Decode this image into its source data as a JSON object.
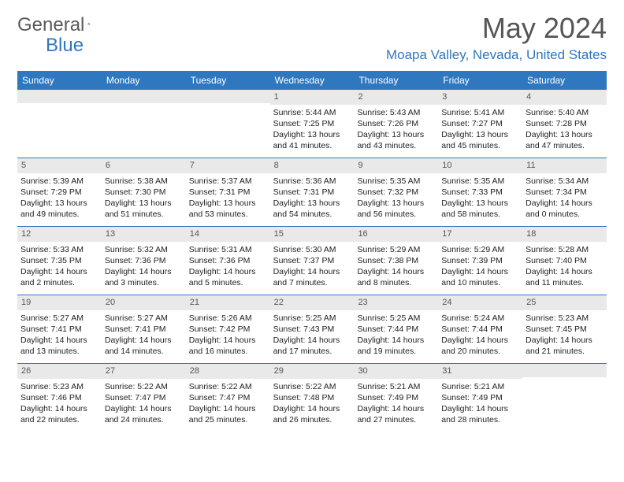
{
  "brand": {
    "g1": "General",
    "g2": "Blue"
  },
  "title": "May 2024",
  "location": "Moapa Valley, Nevada, United States",
  "colors": {
    "header_bg": "#2f78bf",
    "header_fg": "#ffffff",
    "num_bg": "#e9e9e9",
    "text": "#222222",
    "border": "#2f78bf"
  },
  "day_names": [
    "Sunday",
    "Monday",
    "Tuesday",
    "Wednesday",
    "Thursday",
    "Friday",
    "Saturday"
  ],
  "weeks": [
    [
      {
        "n": "",
        "sr": "",
        "ss": "",
        "dl": ""
      },
      {
        "n": "",
        "sr": "",
        "ss": "",
        "dl": ""
      },
      {
        "n": "",
        "sr": "",
        "ss": "",
        "dl": ""
      },
      {
        "n": "1",
        "sr": "Sunrise: 5:44 AM",
        "ss": "Sunset: 7:25 PM",
        "dl": "Daylight: 13 hours and 41 minutes."
      },
      {
        "n": "2",
        "sr": "Sunrise: 5:43 AM",
        "ss": "Sunset: 7:26 PM",
        "dl": "Daylight: 13 hours and 43 minutes."
      },
      {
        "n": "3",
        "sr": "Sunrise: 5:41 AM",
        "ss": "Sunset: 7:27 PM",
        "dl": "Daylight: 13 hours and 45 minutes."
      },
      {
        "n": "4",
        "sr": "Sunrise: 5:40 AM",
        "ss": "Sunset: 7:28 PM",
        "dl": "Daylight: 13 hours and 47 minutes."
      }
    ],
    [
      {
        "n": "5",
        "sr": "Sunrise: 5:39 AM",
        "ss": "Sunset: 7:29 PM",
        "dl": "Daylight: 13 hours and 49 minutes."
      },
      {
        "n": "6",
        "sr": "Sunrise: 5:38 AM",
        "ss": "Sunset: 7:30 PM",
        "dl": "Daylight: 13 hours and 51 minutes."
      },
      {
        "n": "7",
        "sr": "Sunrise: 5:37 AM",
        "ss": "Sunset: 7:31 PM",
        "dl": "Daylight: 13 hours and 53 minutes."
      },
      {
        "n": "8",
        "sr": "Sunrise: 5:36 AM",
        "ss": "Sunset: 7:31 PM",
        "dl": "Daylight: 13 hours and 54 minutes."
      },
      {
        "n": "9",
        "sr": "Sunrise: 5:35 AM",
        "ss": "Sunset: 7:32 PM",
        "dl": "Daylight: 13 hours and 56 minutes."
      },
      {
        "n": "10",
        "sr": "Sunrise: 5:35 AM",
        "ss": "Sunset: 7:33 PM",
        "dl": "Daylight: 13 hours and 58 minutes."
      },
      {
        "n": "11",
        "sr": "Sunrise: 5:34 AM",
        "ss": "Sunset: 7:34 PM",
        "dl": "Daylight: 14 hours and 0 minutes."
      }
    ],
    [
      {
        "n": "12",
        "sr": "Sunrise: 5:33 AM",
        "ss": "Sunset: 7:35 PM",
        "dl": "Daylight: 14 hours and 2 minutes."
      },
      {
        "n": "13",
        "sr": "Sunrise: 5:32 AM",
        "ss": "Sunset: 7:36 PM",
        "dl": "Daylight: 14 hours and 3 minutes."
      },
      {
        "n": "14",
        "sr": "Sunrise: 5:31 AM",
        "ss": "Sunset: 7:36 PM",
        "dl": "Daylight: 14 hours and 5 minutes."
      },
      {
        "n": "15",
        "sr": "Sunrise: 5:30 AM",
        "ss": "Sunset: 7:37 PM",
        "dl": "Daylight: 14 hours and 7 minutes."
      },
      {
        "n": "16",
        "sr": "Sunrise: 5:29 AM",
        "ss": "Sunset: 7:38 PM",
        "dl": "Daylight: 14 hours and 8 minutes."
      },
      {
        "n": "17",
        "sr": "Sunrise: 5:29 AM",
        "ss": "Sunset: 7:39 PM",
        "dl": "Daylight: 14 hours and 10 minutes."
      },
      {
        "n": "18",
        "sr": "Sunrise: 5:28 AM",
        "ss": "Sunset: 7:40 PM",
        "dl": "Daylight: 14 hours and 11 minutes."
      }
    ],
    [
      {
        "n": "19",
        "sr": "Sunrise: 5:27 AM",
        "ss": "Sunset: 7:41 PM",
        "dl": "Daylight: 14 hours and 13 minutes."
      },
      {
        "n": "20",
        "sr": "Sunrise: 5:27 AM",
        "ss": "Sunset: 7:41 PM",
        "dl": "Daylight: 14 hours and 14 minutes."
      },
      {
        "n": "21",
        "sr": "Sunrise: 5:26 AM",
        "ss": "Sunset: 7:42 PM",
        "dl": "Daylight: 14 hours and 16 minutes."
      },
      {
        "n": "22",
        "sr": "Sunrise: 5:25 AM",
        "ss": "Sunset: 7:43 PM",
        "dl": "Daylight: 14 hours and 17 minutes."
      },
      {
        "n": "23",
        "sr": "Sunrise: 5:25 AM",
        "ss": "Sunset: 7:44 PM",
        "dl": "Daylight: 14 hours and 19 minutes."
      },
      {
        "n": "24",
        "sr": "Sunrise: 5:24 AM",
        "ss": "Sunset: 7:44 PM",
        "dl": "Daylight: 14 hours and 20 minutes."
      },
      {
        "n": "25",
        "sr": "Sunrise: 5:23 AM",
        "ss": "Sunset: 7:45 PM",
        "dl": "Daylight: 14 hours and 21 minutes."
      }
    ],
    [
      {
        "n": "26",
        "sr": "Sunrise: 5:23 AM",
        "ss": "Sunset: 7:46 PM",
        "dl": "Daylight: 14 hours and 22 minutes."
      },
      {
        "n": "27",
        "sr": "Sunrise: 5:22 AM",
        "ss": "Sunset: 7:47 PM",
        "dl": "Daylight: 14 hours and 24 minutes."
      },
      {
        "n": "28",
        "sr": "Sunrise: 5:22 AM",
        "ss": "Sunset: 7:47 PM",
        "dl": "Daylight: 14 hours and 25 minutes."
      },
      {
        "n": "29",
        "sr": "Sunrise: 5:22 AM",
        "ss": "Sunset: 7:48 PM",
        "dl": "Daylight: 14 hours and 26 minutes."
      },
      {
        "n": "30",
        "sr": "Sunrise: 5:21 AM",
        "ss": "Sunset: 7:49 PM",
        "dl": "Daylight: 14 hours and 27 minutes."
      },
      {
        "n": "31",
        "sr": "Sunrise: 5:21 AM",
        "ss": "Sunset: 7:49 PM",
        "dl": "Daylight: 14 hours and 28 minutes."
      },
      {
        "n": "",
        "sr": "",
        "ss": "",
        "dl": ""
      }
    ]
  ]
}
